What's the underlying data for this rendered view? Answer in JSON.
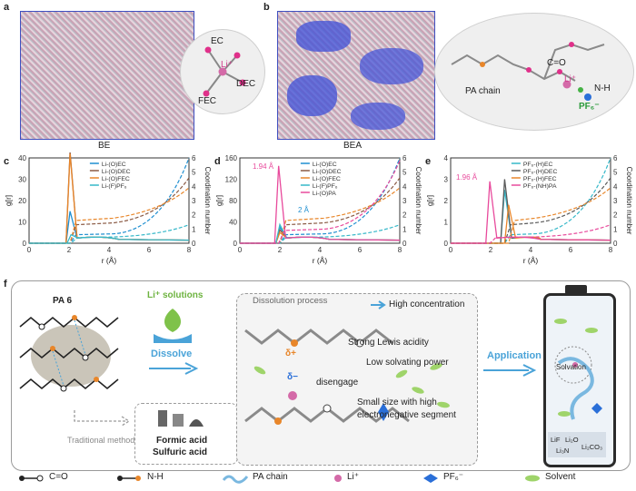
{
  "panels": {
    "a": {
      "letter": "a",
      "caption": "BE",
      "bubble_labels": [
        "EC",
        "Li⁺",
        "DEC",
        "FEC"
      ]
    },
    "b": {
      "letter": "b",
      "caption": "BEA",
      "bubble_labels": [
        "C=O",
        "Li⁺",
        "N-H",
        "PF₆⁻",
        "PA chain"
      ]
    },
    "f": {
      "letter": "f"
    }
  },
  "chart_data": [
    {
      "panel": "c",
      "type": "line",
      "ylabel": "g[r]",
      "y2label": "Coordination number",
      "xlabel": "r (Å)",
      "xlim": [
        0,
        8
      ],
      "ylim": [
        0,
        40
      ],
      "y2lim": [
        0,
        6
      ],
      "xticks": [
        "0",
        "2",
        "4",
        "6",
        "8"
      ],
      "yticks": [
        "0",
        "10",
        "20",
        "30",
        "40"
      ],
      "y2ticks": [
        "0",
        "1",
        "2",
        "3",
        "4",
        "5",
        "6"
      ],
      "legend_position": "top-center",
      "series": [
        {
          "name": "Li-(O)EC",
          "color": "#1f8fd0",
          "peak": {
            "x": 2.05,
            "y": 15
          }
        },
        {
          "name": "Li-(O)DEC",
          "color": "#8a5a44",
          "peak": {
            "x": 2.05,
            "y": 43
          }
        },
        {
          "name": "Li-(O)FEC",
          "color": "#e8862a",
          "peak": {
            "x": 2.05,
            "y": 42
          }
        },
        {
          "name": "Li-(F)PF₆",
          "color": "#36b8c9",
          "peak": {
            "x": 2.1,
            "y": 4
          }
        }
      ]
    },
    {
      "panel": "d",
      "type": "line",
      "ylabel": "g[r]",
      "y2label": "Coordination number",
      "xlabel": "r (Å)",
      "xlim": [
        0,
        8
      ],
      "ylim": [
        0,
        160
      ],
      "y2lim": [
        0,
        6
      ],
      "xticks": [
        "0",
        "2",
        "4",
        "6",
        "8"
      ],
      "yticks": [
        "0",
        "40",
        "80",
        "120",
        "160"
      ],
      "y2ticks": [
        "0",
        "1",
        "2",
        "3",
        "4",
        "5",
        "6"
      ],
      "legend_position": "top-center",
      "annotations": [
        "1.94 Å",
        "2 Å"
      ],
      "series": [
        {
          "name": "Li-(O)EC",
          "color": "#1f8fd0",
          "peak": {
            "x": 2.0,
            "y": 30
          }
        },
        {
          "name": "Li-(O)DEC",
          "color": "#8a5a44",
          "peak": {
            "x": 2.0,
            "y": 25
          }
        },
        {
          "name": "Li-(O)FEC",
          "color": "#e8862a",
          "peak": {
            "x": 2.0,
            "y": 20
          }
        },
        {
          "name": "Li-(F)PF₆",
          "color": "#36b8c9",
          "peak": {
            "x": 2.0,
            "y": 35
          }
        },
        {
          "name": "Li-(O)PA",
          "color": "#e84a9c",
          "peak": {
            "x": 1.94,
            "y": 145
          }
        }
      ]
    },
    {
      "panel": "e",
      "type": "line",
      "ylabel": "g[r]",
      "y2label": "Coordination number",
      "xlabel": "r (Å)",
      "xlim": [
        0,
        8
      ],
      "ylim": [
        0,
        4
      ],
      "y2lim": [
        0,
        6
      ],
      "xticks": [
        "0",
        "2",
        "4",
        "6",
        "8"
      ],
      "yticks": [
        "0",
        "1",
        "2",
        "3",
        "4"
      ],
      "y2ticks": [
        "0",
        "1",
        "2",
        "3",
        "4",
        "5",
        "6"
      ],
      "legend_position": "top-center",
      "annotations": [
        "1.96 Å"
      ],
      "series": [
        {
          "name": "PF₆-(H)EC",
          "color": "#36b8c9",
          "peak": {
            "x": 2.7,
            "y": 2.5
          }
        },
        {
          "name": "PF₆-(H)DEC",
          "color": "#5a5a5a",
          "peak": {
            "x": 2.7,
            "y": 3.0
          }
        },
        {
          "name": "PF₆-(H)FEC",
          "color": "#e8862a",
          "peak": {
            "x": 2.9,
            "y": 1.8
          }
        },
        {
          "name": "PF₆-(NH)PA",
          "color": "#e84a9c",
          "peak": {
            "x": 1.96,
            "y": 2.9
          }
        }
      ]
    }
  ],
  "schematic": {
    "pa6_label": "PA 6",
    "li_solutions_label": "Li⁺ solutions",
    "dissolve_label": "Dissolve",
    "traditional_label": "Traditional method",
    "formic_acid": "Formic acid",
    "sulfuric_acid": "Sulfuric acid",
    "dissolution_title": "Dissolution process",
    "high_concentration": "High concentration",
    "strong_lewis": "Strong Lewis acidity",
    "low_solvating": "Low solvating power",
    "disengage": "disengage",
    "small_size_1": "Small size with high",
    "small_size_2": "electronegative segment",
    "delta_plus": "δ+",
    "delta_minus": "δ−",
    "application": "Application",
    "solvation": "Solvation",
    "sei_lif": "LiF",
    "sei_li2o": "Li₂O",
    "sei_li3n": "Li₃N",
    "sei_li2co3": "Li₂CO₃"
  },
  "bottom_legend": [
    {
      "icon": "co-bond-icon",
      "label": "C=O"
    },
    {
      "icon": "nh-bond-icon",
      "label": "N-H"
    },
    {
      "icon": "pa-chain-icon",
      "label": "PA chain"
    },
    {
      "icon": "li-ion-icon",
      "label": "Li⁺"
    },
    {
      "icon": "pf6-icon",
      "label": "PF₆⁻"
    },
    {
      "icon": "solvent-icon",
      "label": "Solvent"
    }
  ],
  "colors": {
    "box_border": "#3f4fc0",
    "li": "#d46aa8",
    "pf6": "#2a6fd8",
    "solvent": "#9fd46a",
    "accent_green": "#6db33f",
    "arrow_blue": "#4aa3d8"
  }
}
